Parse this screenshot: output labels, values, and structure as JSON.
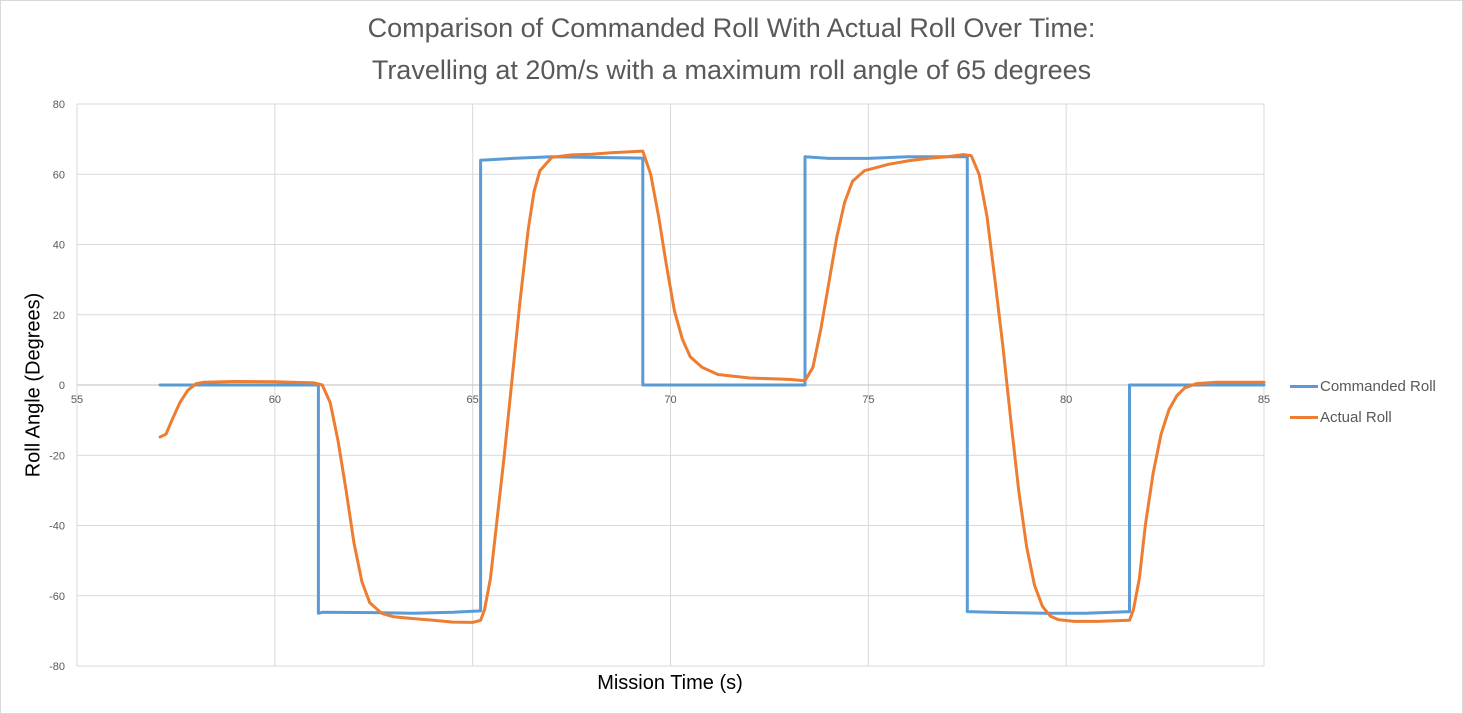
{
  "chart_data": {
    "type": "line",
    "title": "Comparison of Commanded Roll With Actual Roll Over Time:",
    "subtitle": "Travelling at 20m/s with a maximum roll angle of 65 degrees",
    "xlabel": "Mission Time (s)",
    "ylabel": "Roll Angle (Degrees)",
    "xlim": [
      55,
      85
    ],
    "ylim": [
      -80,
      80
    ],
    "x_ticks": [
      55,
      60,
      65,
      70,
      75,
      80,
      85
    ],
    "y_ticks": [
      80,
      60,
      40,
      20,
      0,
      -20,
      -40,
      -60,
      -80
    ],
    "x_ticks_at_zero_line": true,
    "grid": true,
    "legend_position": "right",
    "series": [
      {
        "name": "Commanded Roll",
        "color": "#5B9BD5",
        "points": [
          [
            57.1,
            0
          ],
          [
            61.1,
            0
          ],
          [
            61.1,
            -65
          ],
          [
            61.2,
            -64.7
          ],
          [
            62.5,
            -64.8
          ],
          [
            63.5,
            -65
          ],
          [
            64.5,
            -64.7
          ],
          [
            65.2,
            -64.3
          ],
          [
            65.2,
            64
          ],
          [
            66.0,
            64.5
          ],
          [
            67.0,
            65
          ],
          [
            68.0,
            64.8
          ],
          [
            69.3,
            64.6
          ],
          [
            69.3,
            0
          ],
          [
            73.4,
            0
          ],
          [
            73.4,
            65
          ],
          [
            74.0,
            64.5
          ],
          [
            75.0,
            64.5
          ],
          [
            76.0,
            65
          ],
          [
            77.5,
            65
          ],
          [
            77.5,
            -64.5
          ],
          [
            78.5,
            -64.8
          ],
          [
            79.5,
            -65
          ],
          [
            80.5,
            -65
          ],
          [
            81.6,
            -64.5
          ],
          [
            81.6,
            0
          ],
          [
            85,
            0
          ]
        ]
      },
      {
        "name": "Actual Roll",
        "color": "#ED7D31",
        "points": [
          [
            57.1,
            -14.8
          ],
          [
            57.25,
            -14
          ],
          [
            57.4,
            -10
          ],
          [
            57.6,
            -5
          ],
          [
            57.8,
            -1.5
          ],
          [
            58.0,
            0.3
          ],
          [
            58.2,
            0.8
          ],
          [
            59.0,
            1
          ],
          [
            60.0,
            0.9
          ],
          [
            61.0,
            0.6
          ],
          [
            61.2,
            0
          ],
          [
            61.4,
            -5
          ],
          [
            61.6,
            -16
          ],
          [
            61.8,
            -30
          ],
          [
            62.0,
            -45
          ],
          [
            62.2,
            -56
          ],
          [
            62.4,
            -62
          ],
          [
            62.7,
            -65
          ],
          [
            63.0,
            -66
          ],
          [
            63.5,
            -66.5
          ],
          [
            64.0,
            -67
          ],
          [
            64.5,
            -67.5
          ],
          [
            65.0,
            -67.6
          ],
          [
            65.2,
            -67
          ],
          [
            65.3,
            -64
          ],
          [
            65.45,
            -55
          ],
          [
            65.6,
            -40
          ],
          [
            65.8,
            -20
          ],
          [
            66.0,
            2
          ],
          [
            66.2,
            24
          ],
          [
            66.4,
            44
          ],
          [
            66.55,
            55
          ],
          [
            66.7,
            61
          ],
          [
            67.0,
            64.8
          ],
          [
            67.5,
            65.5
          ],
          [
            68.0,
            65.7
          ],
          [
            68.5,
            66.1
          ],
          [
            69.0,
            66.4
          ],
          [
            69.3,
            66.6
          ],
          [
            69.5,
            60
          ],
          [
            69.7,
            48
          ],
          [
            69.9,
            34
          ],
          [
            70.1,
            21
          ],
          [
            70.3,
            13
          ],
          [
            70.5,
            8
          ],
          [
            70.8,
            5
          ],
          [
            71.2,
            3
          ],
          [
            72.0,
            2
          ],
          [
            73.0,
            1.6
          ],
          [
            73.4,
            1.2
          ],
          [
            73.6,
            5
          ],
          [
            73.8,
            16
          ],
          [
            74.0,
            29
          ],
          [
            74.2,
            42
          ],
          [
            74.4,
            52
          ],
          [
            74.6,
            58
          ],
          [
            74.9,
            61
          ],
          [
            75.5,
            62.8
          ],
          [
            76.0,
            63.8
          ],
          [
            76.5,
            64.5
          ],
          [
            77.0,
            65
          ],
          [
            77.4,
            65.6
          ],
          [
            77.6,
            65.3
          ],
          [
            77.8,
            60
          ],
          [
            78.0,
            48
          ],
          [
            78.2,
            30
          ],
          [
            78.4,
            11
          ],
          [
            78.6,
            -10
          ],
          [
            78.8,
            -30
          ],
          [
            79.0,
            -46
          ],
          [
            79.2,
            -57
          ],
          [
            79.4,
            -63
          ],
          [
            79.6,
            -65.8
          ],
          [
            79.8,
            -66.8
          ],
          [
            80.2,
            -67.3
          ],
          [
            80.8,
            -67.3
          ],
          [
            81.6,
            -67
          ],
          [
            81.7,
            -64
          ],
          [
            81.85,
            -55
          ],
          [
            82.0,
            -40
          ],
          [
            82.2,
            -25
          ],
          [
            82.4,
            -14
          ],
          [
            82.6,
            -7
          ],
          [
            82.8,
            -3
          ],
          [
            83.0,
            -0.8
          ],
          [
            83.3,
            0.4
          ],
          [
            83.8,
            0.8
          ],
          [
            85,
            0.8
          ]
        ]
      }
    ]
  },
  "legend": {
    "items": [
      {
        "label": "Commanded Roll",
        "color": "#5B9BD5"
      },
      {
        "label": "Actual Roll",
        "color": "#ED7D31"
      }
    ]
  }
}
